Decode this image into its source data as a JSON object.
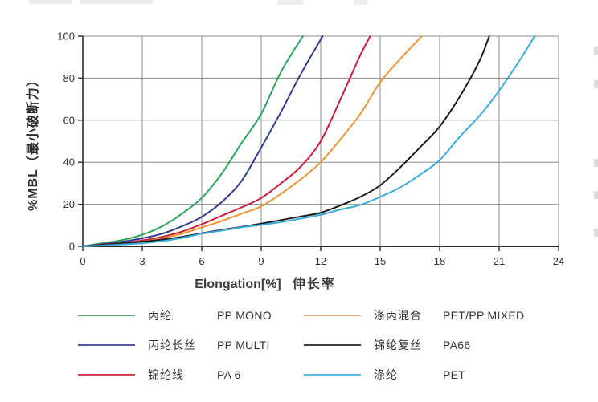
{
  "chart_data": {
    "type": "line",
    "title": "",
    "xlabel": "Elongation[%]",
    "xlabel_cn": "伸长率",
    "ylabel": "%MBL（最小破断力）",
    "xlim": [
      0,
      24
    ],
    "ylim": [
      0,
      100
    ],
    "xticks": [
      0,
      3,
      6,
      9,
      12,
      15,
      18,
      21,
      24
    ],
    "yticks": [
      0,
      20,
      40,
      60,
      80,
      100
    ],
    "grid": true,
    "legend_position": "bottom",
    "grid_color": "#8c8c8c",
    "axis_color": "#2b2b2b",
    "tick_label_color": "#333333",
    "series": [
      {
        "name_cn": "丙纶",
        "name_en": "PP MONO",
        "color": "#2da35f",
        "points": [
          [
            0,
            0
          ],
          [
            1,
            1.5
          ],
          [
            2,
            3
          ],
          [
            3,
            5.5
          ],
          [
            4,
            9.5
          ],
          [
            5,
            15.5
          ],
          [
            6,
            23
          ],
          [
            7,
            34.5
          ],
          [
            8,
            49
          ],
          [
            9,
            63
          ],
          [
            10,
            83
          ],
          [
            11.1,
            100
          ]
        ]
      },
      {
        "name_cn": "丙纶长丝",
        "name_en": "PP MULTI",
        "color": "#333c8c",
        "points": [
          [
            0,
            0
          ],
          [
            1,
            1
          ],
          [
            2,
            2.2
          ],
          [
            3,
            3.8
          ],
          [
            4,
            6
          ],
          [
            5,
            9.5
          ],
          [
            6,
            14
          ],
          [
            7,
            21
          ],
          [
            8,
            31
          ],
          [
            9,
            47
          ],
          [
            10,
            64
          ],
          [
            11,
            82
          ],
          [
            12.1,
            100
          ]
        ]
      },
      {
        "name_cn": "锦纶线",
        "name_en": "PA 6",
        "color": "#c81e3c",
        "points": [
          [
            0,
            0
          ],
          [
            1,
            0.8
          ],
          [
            2,
            1.6
          ],
          [
            3,
            2.8
          ],
          [
            4,
            4.5
          ],
          [
            5,
            7
          ],
          [
            6,
            10.5
          ],
          [
            7,
            14.5
          ],
          [
            8,
            18.5
          ],
          [
            9,
            23
          ],
          [
            10,
            30
          ],
          [
            11,
            38
          ],
          [
            12,
            50
          ],
          [
            13,
            70
          ],
          [
            14,
            91
          ],
          [
            14.5,
            100
          ]
        ]
      },
      {
        "name_cn": "涤丙混合",
        "name_en": "PET/PP MIXED",
        "color": "#ea9638",
        "points": [
          [
            0,
            0
          ],
          [
            1,
            0.6
          ],
          [
            2,
            1.3
          ],
          [
            3,
            2.2
          ],
          [
            4,
            3.8
          ],
          [
            5,
            6
          ],
          [
            6,
            9
          ],
          [
            7,
            12
          ],
          [
            8,
            15.5
          ],
          [
            9,
            19
          ],
          [
            10,
            25
          ],
          [
            11,
            32
          ],
          [
            12,
            40
          ],
          [
            13,
            51
          ],
          [
            14,
            63
          ],
          [
            15,
            78
          ],
          [
            16,
            89
          ],
          [
            17.1,
            100
          ]
        ]
      },
      {
        "name_cn": "锦纶复丝",
        "name_en": "PA66",
        "color": "#1c1c1c",
        "points": [
          [
            0,
            0
          ],
          [
            1,
            0.7
          ],
          [
            2,
            1.4
          ],
          [
            3,
            2.2
          ],
          [
            4,
            3.2
          ],
          [
            5,
            4.5
          ],
          [
            6,
            6.2
          ],
          [
            7,
            7.8
          ],
          [
            8,
            9.2
          ],
          [
            9,
            10.8
          ],
          [
            10,
            12.5
          ],
          [
            11,
            14.2
          ],
          [
            12,
            16
          ],
          [
            13,
            19.5
          ],
          [
            14,
            23.5
          ],
          [
            15,
            29
          ],
          [
            16,
            37.5
          ],
          [
            17,
            47
          ],
          [
            18,
            57
          ],
          [
            19,
            71
          ],
          [
            20,
            88
          ],
          [
            20.5,
            100
          ]
        ]
      },
      {
        "name_cn": "涤纶",
        "name_en": "PET",
        "color": "#3caadc",
        "points": [
          [
            0,
            0
          ],
          [
            1,
            0.4
          ],
          [
            2,
            0.9
          ],
          [
            3,
            1.5
          ],
          [
            4,
            2.5
          ],
          [
            5,
            4
          ],
          [
            6,
            6
          ],
          [
            7,
            7.5
          ],
          [
            8,
            9
          ],
          [
            9,
            10.2
          ],
          [
            10,
            11.5
          ],
          [
            11,
            13.2
          ],
          [
            12,
            15
          ],
          [
            13,
            17.5
          ],
          [
            14,
            19.7
          ],
          [
            15,
            23.5
          ],
          [
            16,
            28
          ],
          [
            17,
            34
          ],
          [
            18,
            41
          ],
          [
            19,
            52
          ],
          [
            20,
            62
          ],
          [
            21,
            74
          ],
          [
            22,
            88
          ],
          [
            22.8,
            100
          ]
        ]
      }
    ]
  }
}
